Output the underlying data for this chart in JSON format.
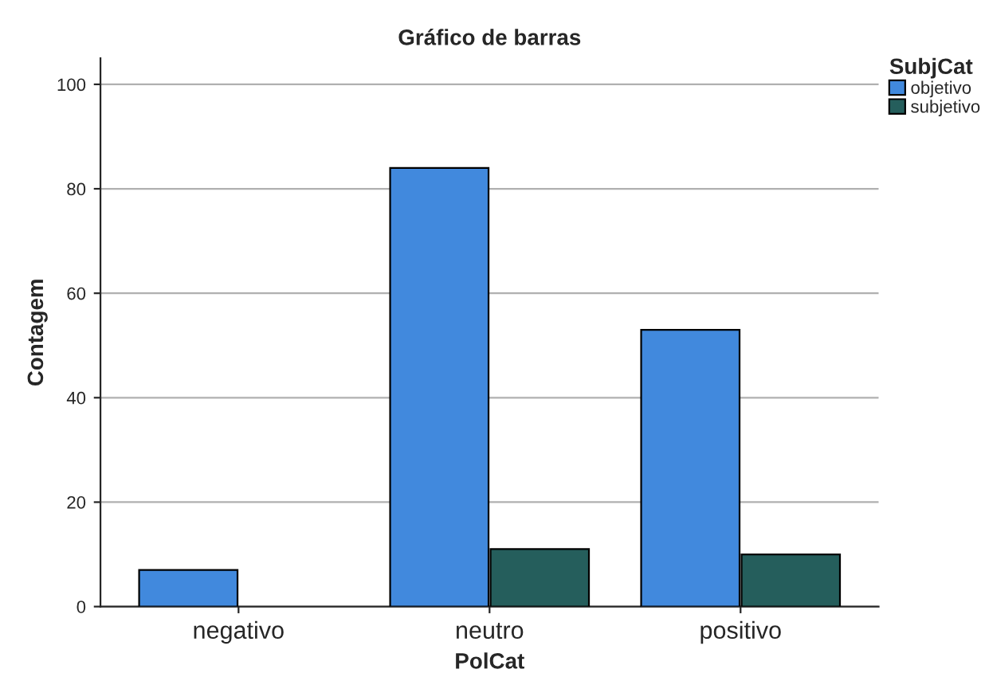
{
  "chart_data": {
    "type": "bar",
    "title": "Gráfico de barras",
    "xlabel": "PolCat",
    "ylabel": "Contagem",
    "legend_title": "SubjCat",
    "categories": [
      "negativo",
      "neutro",
      "positivo"
    ],
    "series": [
      {
        "name": "objetivo",
        "color": "#4189dd",
        "values": [
          7,
          84,
          53
        ]
      },
      {
        "name": "subjetivo",
        "color": "#255e5c",
        "values": [
          null,
          11,
          10
        ]
      }
    ],
    "ylim": [
      0,
      105
    ],
    "yticks": [
      0,
      20,
      40,
      60,
      80,
      100
    ],
    "grid": "y",
    "legend": "top right"
  }
}
